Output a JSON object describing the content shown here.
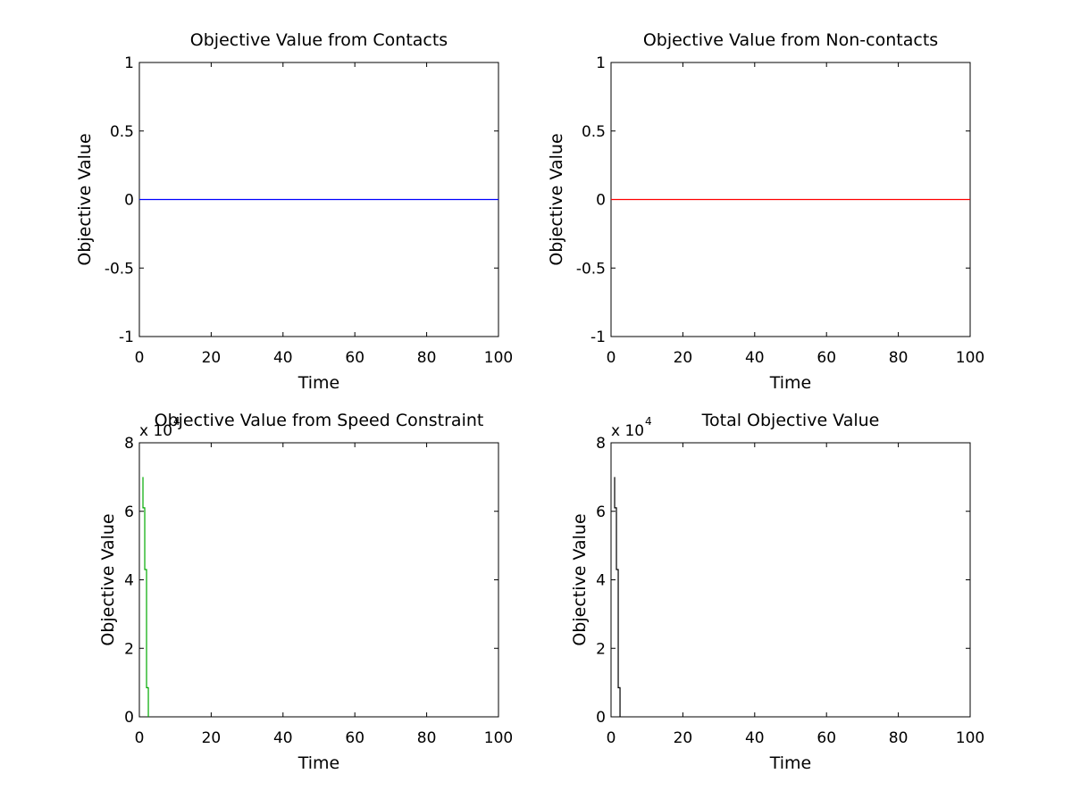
{
  "chart_data": [
    {
      "type": "line",
      "title": "Objective Value from Contacts",
      "xlabel": "Time",
      "ylabel": "Objective Value",
      "xlim": [
        0,
        100
      ],
      "ylim": [
        -1,
        1
      ],
      "xticks": [
        "0",
        "20",
        "40",
        "60",
        "80",
        "100"
      ],
      "yticks": [
        "-1",
        "-0.5",
        "0",
        "0.5",
        "1"
      ],
      "exponent_label": null,
      "series": [
        {
          "color": "#0000ff",
          "x": [
            0,
            100
          ],
          "y": [
            0,
            0
          ]
        }
      ]
    },
    {
      "type": "line",
      "title": "Objective Value from Non-contacts",
      "xlabel": "Time",
      "ylabel": "Objective Value",
      "xlim": [
        0,
        100
      ],
      "ylim": [
        -1,
        1
      ],
      "xticks": [
        "0",
        "20",
        "40",
        "60",
        "80",
        "100"
      ],
      "yticks": [
        "-1",
        "-0.5",
        "0",
        "0.5",
        "1"
      ],
      "exponent_label": null,
      "series": [
        {
          "color": "#ff0000",
          "x": [
            0,
            100
          ],
          "y": [
            0,
            0
          ]
        }
      ]
    },
    {
      "type": "line",
      "title": "Objective Value from Speed Constraint",
      "xlabel": "Time",
      "ylabel": "Objective Value",
      "xlim": [
        0,
        100
      ],
      "ylim": [
        0,
        80000
      ],
      "xticks": [
        "0",
        "20",
        "40",
        "60",
        "80",
        "100"
      ],
      "yticks": [
        "0",
        "2",
        "4",
        "6",
        "8"
      ],
      "exponent_label": {
        "base": "x 10",
        "power": "4"
      },
      "series": [
        {
          "color": "#00aa00",
          "x": [
            1,
            1,
            1.5,
            1.5,
            2,
            2,
            2.5,
            2.5
          ],
          "y": [
            70000,
            61000,
            61000,
            43000,
            43000,
            8500,
            8500,
            0
          ]
        }
      ]
    },
    {
      "type": "line",
      "title": "Total Objective Value",
      "xlabel": "Time",
      "ylabel": "Objective Value",
      "xlim": [
        0,
        100
      ],
      "ylim": [
        0,
        80000
      ],
      "xticks": [
        "0",
        "20",
        "40",
        "60",
        "80",
        "100"
      ],
      "yticks": [
        "0",
        "2",
        "4",
        "6",
        "8"
      ],
      "exponent_label": {
        "base": "x 10",
        "power": "4"
      },
      "series": [
        {
          "color": "#000000",
          "x": [
            1,
            1,
            1.5,
            1.5,
            2,
            2,
            2.5,
            2.5
          ],
          "y": [
            70000,
            61000,
            61000,
            43000,
            43000,
            8500,
            8500,
            0
          ]
        }
      ]
    }
  ]
}
